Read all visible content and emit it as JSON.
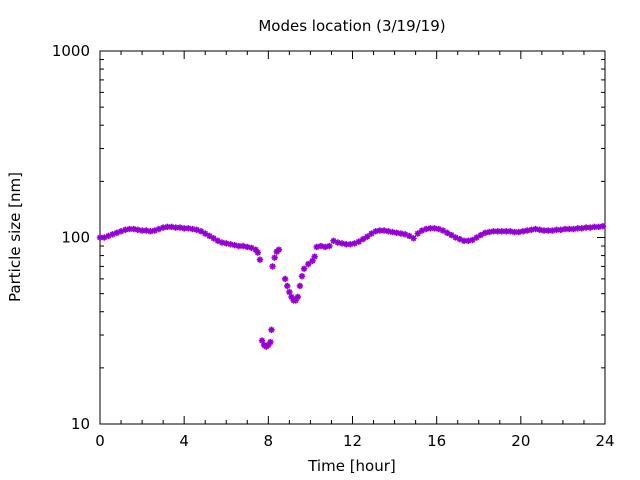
{
  "chart_data": {
    "type": "scatter",
    "title": "Modes location (3/19/19)",
    "xlabel": "Time [hour]",
    "ylabel": "Particle size [nm]",
    "xlim": [
      0,
      24
    ],
    "ylim": [
      10,
      1000
    ],
    "yscale": "log",
    "grid": false,
    "legend": "none",
    "marker_color": "#9400d3",
    "x_ticks": [
      0,
      4,
      8,
      12,
      16,
      20,
      24
    ],
    "x_tick_labels": [
      "0",
      "4",
      "8",
      "12",
      "16",
      "20",
      "24"
    ],
    "y_ticks": [
      10,
      100,
      1000
    ],
    "y_tick_labels": [
      "10",
      "100",
      "1000"
    ],
    "series": [
      {
        "points": [
          [
            0.0,
            100
          ],
          [
            0.2,
            100
          ],
          [
            0.4,
            102
          ],
          [
            0.6,
            104
          ],
          [
            0.8,
            106
          ],
          [
            1.0,
            108
          ],
          [
            1.2,
            110
          ],
          [
            1.4,
            111
          ],
          [
            1.6,
            111
          ],
          [
            1.8,
            110
          ],
          [
            2.0,
            109
          ],
          [
            2.2,
            109
          ],
          [
            2.4,
            108
          ],
          [
            2.6,
            109
          ],
          [
            2.8,
            111
          ],
          [
            3.0,
            113
          ],
          [
            3.2,
            114
          ],
          [
            3.4,
            114
          ],
          [
            3.6,
            113
          ],
          [
            3.8,
            113
          ],
          [
            4.0,
            112
          ],
          [
            4.2,
            112
          ],
          [
            4.4,
            111
          ],
          [
            4.6,
            110
          ],
          [
            4.8,
            108
          ],
          [
            5.0,
            105
          ],
          [
            5.2,
            102
          ],
          [
            5.4,
            99
          ],
          [
            5.6,
            96
          ],
          [
            5.8,
            94
          ],
          [
            6.0,
            93
          ],
          [
            6.2,
            92
          ],
          [
            6.4,
            91
          ],
          [
            6.6,
            90
          ],
          [
            6.8,
            90
          ],
          [
            7.0,
            89
          ],
          [
            7.2,
            88
          ],
          [
            7.4,
            86
          ],
          [
            7.5,
            83
          ],
          [
            7.6,
            76
          ],
          [
            7.7,
            28
          ],
          [
            7.8,
            26.5
          ],
          [
            7.9,
            26
          ],
          [
            8.0,
            26.5
          ],
          [
            8.1,
            27.5
          ],
          [
            8.15,
            32
          ],
          [
            8.2,
            70
          ],
          [
            8.3,
            78
          ],
          [
            8.4,
            84
          ],
          [
            8.5,
            86
          ],
          [
            8.8,
            60
          ],
          [
            8.9,
            55
          ],
          [
            9.0,
            51
          ],
          [
            9.1,
            48
          ],
          [
            9.2,
            46
          ],
          [
            9.3,
            46
          ],
          [
            9.4,
            48
          ],
          [
            9.5,
            55
          ],
          [
            9.6,
            62
          ],
          [
            9.7,
            68
          ],
          [
            9.9,
            72
          ],
          [
            10.1,
            75
          ],
          [
            10.2,
            79
          ],
          [
            10.3,
            89
          ],
          [
            10.5,
            90
          ],
          [
            10.7,
            89
          ],
          [
            10.9,
            90
          ],
          [
            11.1,
            96
          ],
          [
            11.3,
            94
          ],
          [
            11.5,
            93
          ],
          [
            11.7,
            92
          ],
          [
            11.9,
            92
          ],
          [
            12.1,
            93
          ],
          [
            12.3,
            95
          ],
          [
            12.5,
            98
          ],
          [
            12.7,
            101
          ],
          [
            12.9,
            105
          ],
          [
            13.1,
            108
          ],
          [
            13.3,
            109
          ],
          [
            13.5,
            109
          ],
          [
            13.7,
            108
          ],
          [
            13.9,
            107
          ],
          [
            14.1,
            106
          ],
          [
            14.3,
            105
          ],
          [
            14.5,
            104
          ],
          [
            14.7,
            102
          ],
          [
            14.9,
            99
          ],
          [
            15.1,
            105
          ],
          [
            15.3,
            109
          ],
          [
            15.5,
            111
          ],
          [
            15.7,
            112
          ],
          [
            15.9,
            112
          ],
          [
            16.1,
            111
          ],
          [
            16.3,
            109
          ],
          [
            16.5,
            106
          ],
          [
            16.7,
            103
          ],
          [
            16.9,
            100
          ],
          [
            17.1,
            98
          ],
          [
            17.3,
            96
          ],
          [
            17.5,
            96
          ],
          [
            17.7,
            97
          ],
          [
            17.9,
            100
          ],
          [
            18.1,
            103
          ],
          [
            18.3,
            106
          ],
          [
            18.5,
            107
          ],
          [
            18.7,
            108
          ],
          [
            18.9,
            108
          ],
          [
            19.1,
            108
          ],
          [
            19.3,
            108
          ],
          [
            19.5,
            108
          ],
          [
            19.7,
            107
          ],
          [
            19.9,
            107
          ],
          [
            20.1,
            108
          ],
          [
            20.3,
            109
          ],
          [
            20.5,
            110
          ],
          [
            20.7,
            111
          ],
          [
            20.9,
            110
          ],
          [
            21.1,
            109
          ],
          [
            21.3,
            109
          ],
          [
            21.5,
            109
          ],
          [
            21.7,
            110
          ],
          [
            21.9,
            110
          ],
          [
            22.1,
            111
          ],
          [
            22.3,
            111
          ],
          [
            22.5,
            111
          ],
          [
            22.7,
            112
          ],
          [
            22.9,
            112
          ],
          [
            23.1,
            113
          ],
          [
            23.3,
            113
          ],
          [
            23.5,
            114
          ],
          [
            23.7,
            114
          ],
          [
            23.9,
            115
          ]
        ]
      }
    ]
  }
}
